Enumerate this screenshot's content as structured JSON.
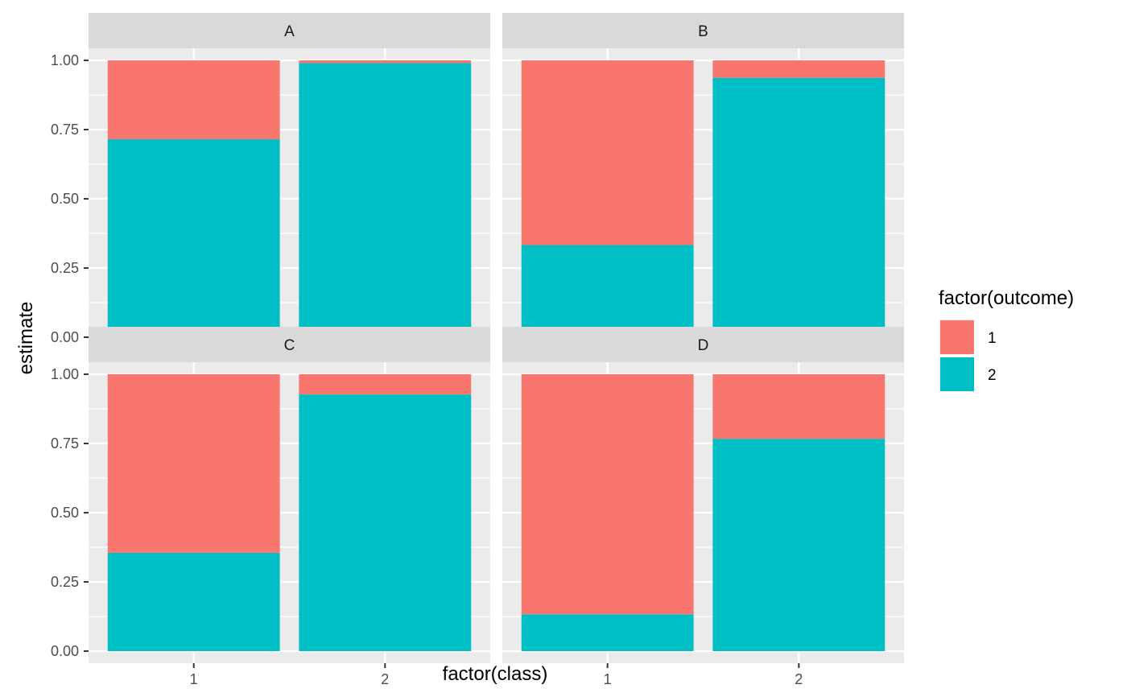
{
  "chart_data": {
    "type": "bar",
    "stacked": true,
    "facet_layout": "2x2",
    "xlabel": "factor(class)",
    "ylabel": "estimate",
    "ylim": [
      0,
      1
    ],
    "categories": [
      "1",
      "2"
    ],
    "y_ticks": [
      "0.00",
      "0.25",
      "0.50",
      "0.75",
      "1.00"
    ],
    "y_tick_values": [
      0,
      0.25,
      0.5,
      0.75,
      1
    ],
    "grid": true,
    "legend": {
      "title": "factor(outcome)",
      "placement": "right",
      "entries": [
        {
          "label": "1",
          "color": "#F8766D"
        },
        {
          "label": "2",
          "color": "#00BFC4"
        }
      ]
    },
    "stack_order_bottom_to_top": [
      "2",
      "1"
    ],
    "panels": [
      {
        "name": "A",
        "series": [
          {
            "name": "1",
            "values": [
              0.285,
              0.01
            ]
          },
          {
            "name": "2",
            "values": [
              0.715,
              0.99
            ]
          }
        ]
      },
      {
        "name": "B",
        "series": [
          {
            "name": "1",
            "values": [
              0.667,
              0.063
            ]
          },
          {
            "name": "2",
            "values": [
              0.333,
              0.937
            ]
          }
        ]
      },
      {
        "name": "C",
        "series": [
          {
            "name": "1",
            "values": [
              0.645,
              0.073
            ]
          },
          {
            "name": "2",
            "values": [
              0.355,
              0.927
            ]
          }
        ]
      },
      {
        "name": "D",
        "series": [
          {
            "name": "1",
            "values": [
              0.867,
              0.233
            ]
          },
          {
            "name": "2",
            "values": [
              0.133,
              0.767
            ]
          }
        ]
      }
    ]
  }
}
